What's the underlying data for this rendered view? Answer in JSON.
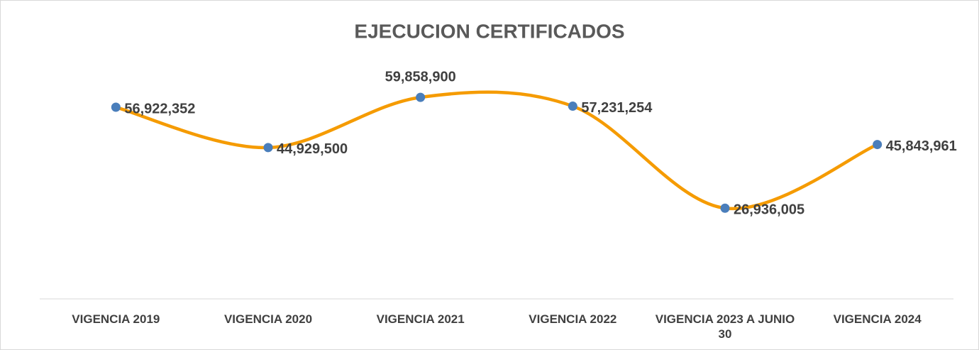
{
  "chart_data": {
    "type": "line",
    "title": "EJECUCION CERTIFICADOS",
    "categories": [
      "VIGENCIA 2019",
      "VIGENCIA 2020",
      "VIGENCIA 2021",
      "VIGENCIA 2022",
      "VIGENCIA 2023 A JUNIO 30",
      "VIGENCIA 2024"
    ],
    "series": [
      {
        "name": "EJECUCION CERTIFICADOS",
        "color": "#f59b00",
        "marker_color": "#4a7ebb",
        "values": [
          56922352,
          44929500,
          59858900,
          57231254,
          26936005,
          45843961
        ],
        "value_labels": [
          "56,922,352",
          "44,929,500",
          "59,858,900",
          "57,231,254",
          "26,936,005",
          "45,843,961"
        ]
      }
    ],
    "ylim": [
      0,
      70000000
    ],
    "smooth": true
  }
}
